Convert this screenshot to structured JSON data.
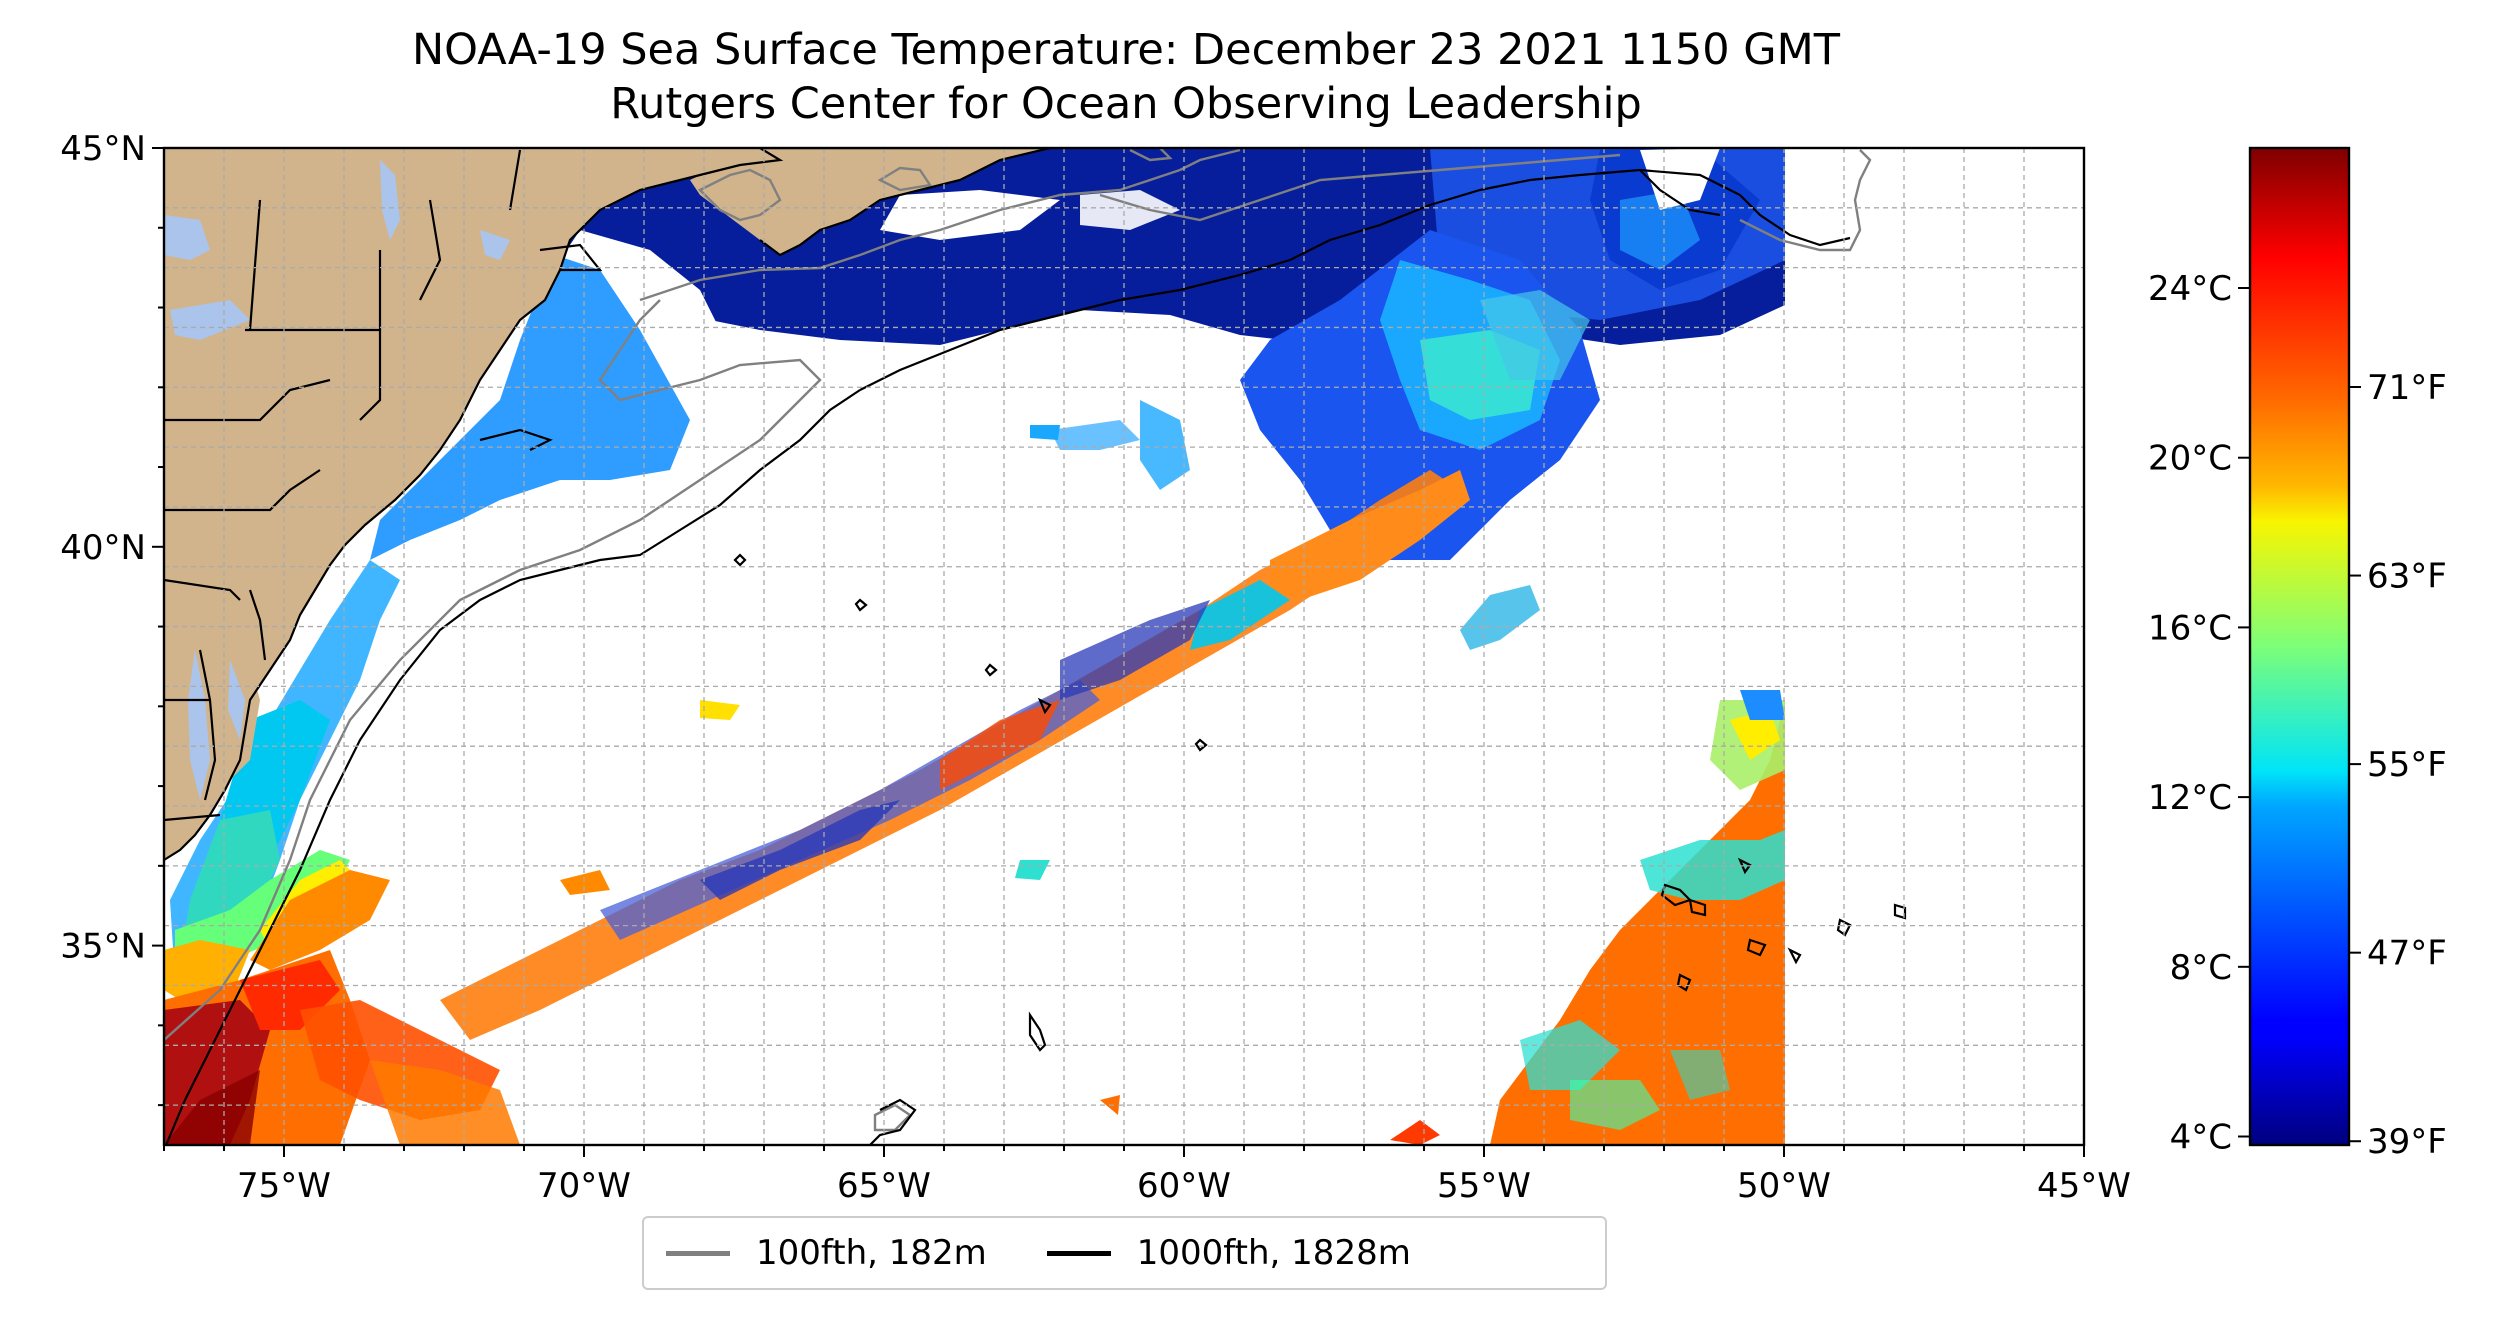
{
  "title": "NOAA-19 Sea Surface Temperature: December 23 2021 1150 GMT",
  "subtitle": "Rutgers Center for Ocean Observing Leadership",
  "map": {
    "lon_range": [
      -77,
      -45
    ],
    "lat_range": [
      32.5,
      45
    ],
    "lon_ticks": [
      "75°W",
      "70°W",
      "65°W",
      "60°W",
      "55°W",
      "50°W",
      "45°W"
    ],
    "lat_ticks": [
      "35°N",
      "40°N",
      "45°N"
    ],
    "grid": true,
    "land_color": "#d2b48c",
    "water_color": "#aac4ec",
    "no_data_color": "#ffffff"
  },
  "colorbar": {
    "colormap": "jet",
    "celsius_ticks": [
      "4°C",
      "8°C",
      "12°C",
      "16°C",
      "20°C",
      "24°C"
    ],
    "fahrenheit_ticks": [
      "39°F",
      "47°F",
      "55°F",
      "63°F",
      "71°F"
    ]
  },
  "legend": {
    "placement": "bottom-center",
    "entries": [
      {
        "label": "100fth, 182m",
        "color": "#808080"
      },
      {
        "label": "1000fth, 1828m",
        "color": "#000000"
      }
    ]
  }
}
